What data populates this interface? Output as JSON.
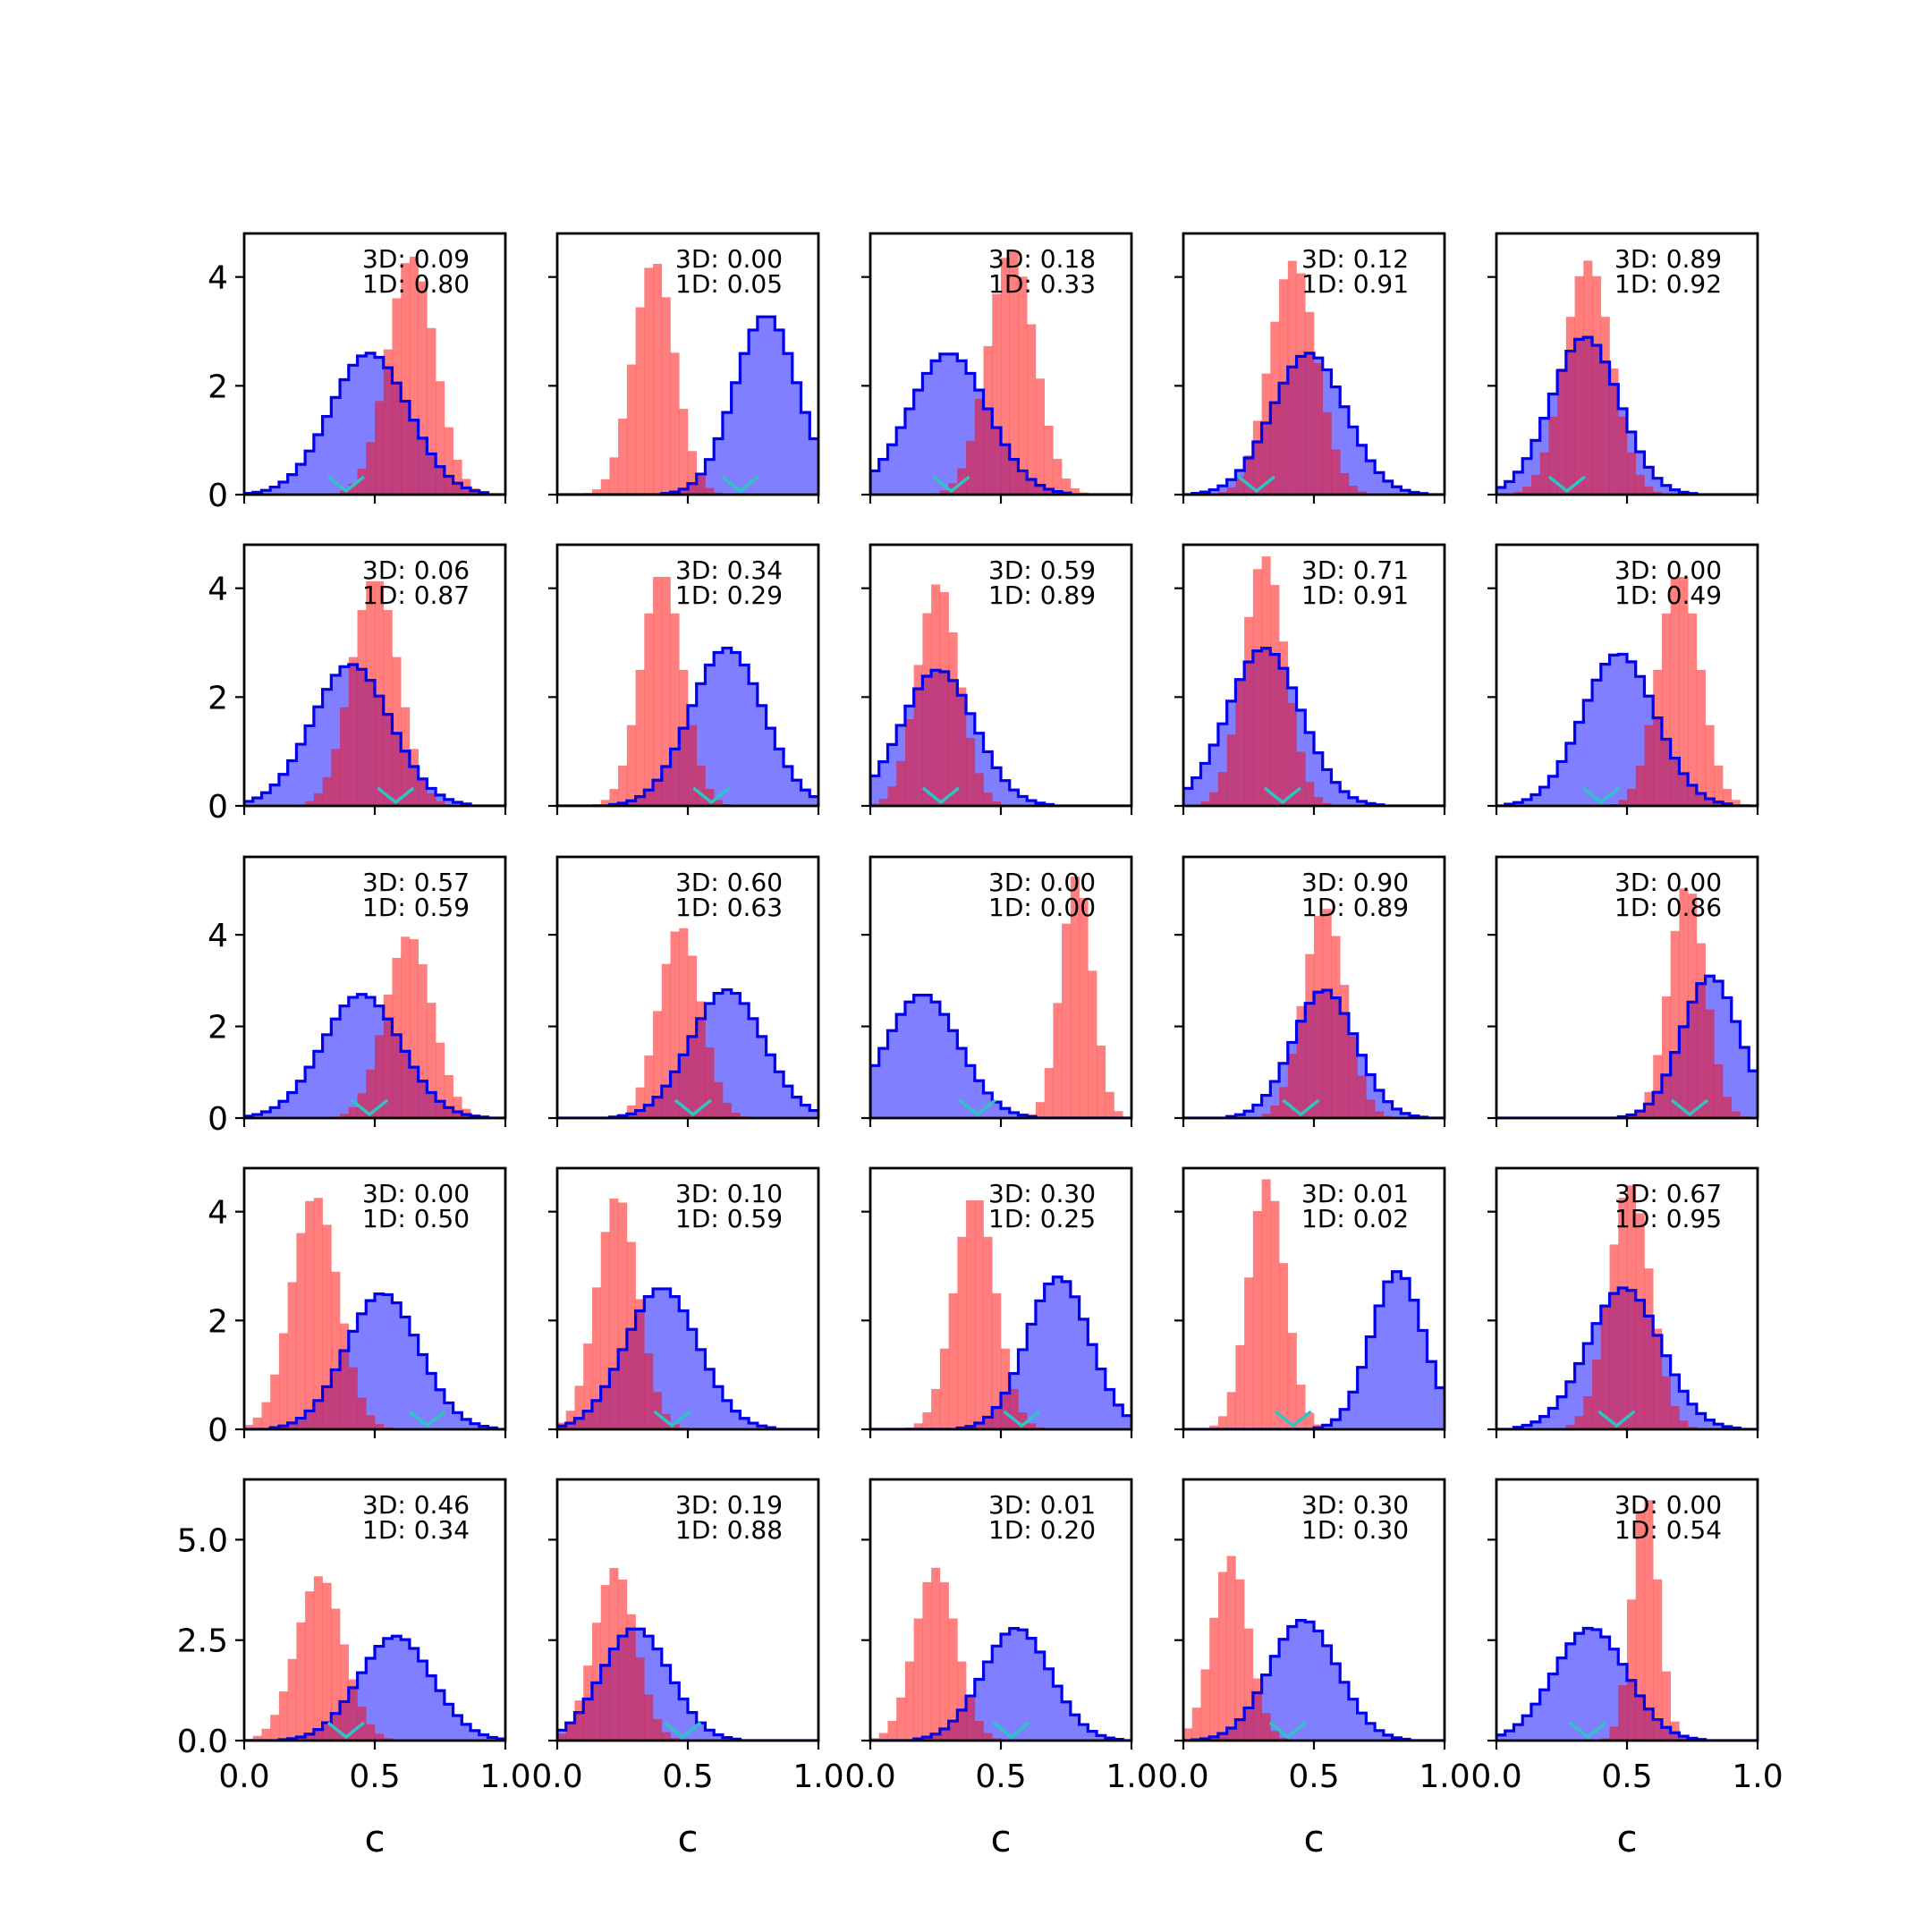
{
  "chart_data": {
    "type": "histogram-grid",
    "rows": 5,
    "cols": 5,
    "xlim": [
      0.0,
      1.0
    ],
    "xticks": [
      "0.0",
      "0.5",
      "1.0"
    ],
    "xlabel": "c",
    "row_yticks": [
      {
        "ylim": [
          0,
          4.8
        ],
        "ticks": [
          0,
          2,
          4
        ],
        "labels": [
          "0",
          "2",
          "4"
        ]
      },
      {
        "ylim": [
          0,
          4.8
        ],
        "ticks": [
          0,
          2,
          4
        ],
        "labels": [
          "0",
          "2",
          "4"
        ]
      },
      {
        "ylim": [
          0,
          5.7
        ],
        "ticks": [
          0,
          2,
          4
        ],
        "labels": [
          "0",
          "2",
          "4"
        ]
      },
      {
        "ylim": [
          0,
          4.8
        ],
        "ticks": [
          0,
          2,
          4
        ],
        "labels": [
          "0",
          "2",
          "4"
        ]
      },
      {
        "ylim": [
          0,
          6.5
        ],
        "ticks": [
          0,
          2.5,
          5.0
        ],
        "labels": [
          "0.0",
          "2.5",
          "5.0"
        ]
      }
    ],
    "colors": {
      "red": "#ff0000",
      "blue": "#0000ff",
      "blue_edge": "#0000ee",
      "marker": "#2ec4c4"
    },
    "panels": [
      {
        "text_3d": "3D: 0.09",
        "text_1d": "1D: 0.80",
        "red": {
          "mean": 0.64,
          "sd": 0.09,
          "peak": 4.4
        },
        "blue": {
          "mean": 0.48,
          "sd": 0.15,
          "peak": 2.6
        },
        "marker": 0.39
      },
      {
        "text_3d": "3D: 0.00",
        "text_1d": "1D: 0.05",
        "red": {
          "mean": 0.37,
          "sd": 0.08,
          "peak": 4.3
        },
        "blue": {
          "mean": 0.8,
          "sd": 0.12,
          "peak": 3.3
        },
        "marker": 0.7
      },
      {
        "text_3d": "3D: 0.18",
        "text_1d": "1D: 0.33",
        "red": {
          "mean": 0.54,
          "sd": 0.09,
          "peak": 4.5
        },
        "blue": {
          "mean": 0.3,
          "sd": 0.15,
          "peak": 2.6
        },
        "marker": 0.31
      },
      {
        "text_3d": "3D: 0.12",
        "text_1d": "1D: 0.91",
        "red": {
          "mean": 0.42,
          "sd": 0.09,
          "peak": 4.3
        },
        "blue": {
          "mean": 0.48,
          "sd": 0.14,
          "peak": 2.6
        },
        "marker": 0.28
      },
      {
        "text_3d": "3D: 0.89",
        "text_1d": "1D: 0.92",
        "red": {
          "mean": 0.35,
          "sd": 0.09,
          "peak": 4.3
        },
        "blue": {
          "mean": 0.34,
          "sd": 0.13,
          "peak": 2.9
        },
        "marker": 0.27
      },
      {
        "text_3d": "3D: 0.06",
        "text_1d": "1D: 0.87",
        "red": {
          "mean": 0.5,
          "sd": 0.09,
          "peak": 4.2
        },
        "blue": {
          "mean": 0.41,
          "sd": 0.15,
          "peak": 2.6
        },
        "marker": 0.58
      },
      {
        "text_3d": "3D: 0.34",
        "text_1d": "1D: 0.29",
        "red": {
          "mean": 0.4,
          "sd": 0.08,
          "peak": 4.3
        },
        "blue": {
          "mean": 0.65,
          "sd": 0.14,
          "peak": 2.9
        },
        "marker": 0.59
      },
      {
        "text_3d": "3D: 0.59",
        "text_1d": "1D: 0.89",
        "red": {
          "mean": 0.26,
          "sd": 0.08,
          "peak": 4.1
        },
        "blue": {
          "mean": 0.26,
          "sd": 0.14,
          "peak": 2.5
        },
        "marker": 0.27
      },
      {
        "text_3d": "3D: 0.71",
        "text_1d": "1D: 0.91",
        "red": {
          "mean": 0.31,
          "sd": 0.08,
          "peak": 4.6
        },
        "blue": {
          "mean": 0.31,
          "sd": 0.14,
          "peak": 2.9
        },
        "marker": 0.38
      },
      {
        "text_3d": "3D: 0.00",
        "text_1d": "1D: 0.49",
        "red": {
          "mean": 0.7,
          "sd": 0.08,
          "peak": 4.3
        },
        "blue": {
          "mean": 0.47,
          "sd": 0.14,
          "peak": 2.8
        },
        "marker": 0.4
      },
      {
        "text_3d": "3D: 0.57",
        "text_1d": "1D: 0.59",
        "red": {
          "mean": 0.63,
          "sd": 0.09,
          "peak": 4.0
        },
        "blue": {
          "mean": 0.45,
          "sd": 0.15,
          "peak": 2.7
        },
        "marker": 0.48
      },
      {
        "text_3d": "3D: 0.60",
        "text_1d": "1D: 0.63",
        "red": {
          "mean": 0.47,
          "sd": 0.08,
          "peak": 4.2
        },
        "blue": {
          "mean": 0.65,
          "sd": 0.14,
          "peak": 2.8
        },
        "marker": 0.52
      },
      {
        "text_3d": "3D: 0.00",
        "text_1d": "1D: 0.00",
        "red": {
          "mean": 0.79,
          "sd": 0.06,
          "peak": 5.3
        },
        "blue": {
          "mean": 0.2,
          "sd": 0.14,
          "peak": 2.7
        },
        "marker": 0.41
      },
      {
        "text_3d": "3D: 0.90",
        "text_1d": "1D: 0.89",
        "red": {
          "mean": 0.54,
          "sd": 0.08,
          "peak": 4.6
        },
        "blue": {
          "mean": 0.54,
          "sd": 0.12,
          "peak": 2.8
        },
        "marker": 0.45
      },
      {
        "text_3d": "3D: 0.00",
        "text_1d": "1D: 0.86",
        "red": {
          "mean": 0.73,
          "sd": 0.07,
          "peak": 5.1
        },
        "blue": {
          "mean": 0.82,
          "sd": 0.11,
          "peak": 3.1
        },
        "marker": 0.74
      },
      {
        "text_3d": "3D: 0.00",
        "text_1d": "1D: 0.50",
        "red": {
          "mean": 0.27,
          "sd": 0.09,
          "peak": 4.3
        },
        "blue": {
          "mean": 0.53,
          "sd": 0.14,
          "peak": 2.5
        },
        "marker": 0.7
      },
      {
        "text_3d": "3D: 0.10",
        "text_1d": "1D: 0.59",
        "red": {
          "mean": 0.23,
          "sd": 0.08,
          "peak": 4.3
        },
        "blue": {
          "mean": 0.4,
          "sd": 0.14,
          "peak": 2.6
        },
        "marker": 0.44
      },
      {
        "text_3d": "3D: 0.30",
        "text_1d": "1D: 0.25",
        "red": {
          "mean": 0.4,
          "sd": 0.08,
          "peak": 4.3
        },
        "blue": {
          "mean": 0.72,
          "sd": 0.12,
          "peak": 2.8
        },
        "marker": 0.58
      },
      {
        "text_3d": "3D: 0.01",
        "text_1d": "1D: 0.02",
        "red": {
          "mean": 0.32,
          "sd": 0.07,
          "peak": 4.6
        },
        "blue": {
          "mean": 0.82,
          "sd": 0.1,
          "peak": 2.9
        },
        "marker": 0.42
      },
      {
        "text_3d": "3D: 0.67",
        "text_1d": "1D: 0.95",
        "red": {
          "mean": 0.51,
          "sd": 0.08,
          "peak": 4.5
        },
        "blue": {
          "mean": 0.49,
          "sd": 0.14,
          "peak": 2.6
        },
        "marker": 0.46
      },
      {
        "text_3d": "3D: 0.46",
        "text_1d": "1D: 0.34",
        "red": {
          "mean": 0.29,
          "sd": 0.09,
          "peak": 4.1
        },
        "blue": {
          "mean": 0.58,
          "sd": 0.14,
          "peak": 2.6
        },
        "marker": 0.39
      },
      {
        "text_3d": "3D: 0.19",
        "text_1d": "1D: 0.88",
        "red": {
          "mean": 0.22,
          "sd": 0.08,
          "peak": 4.3
        },
        "blue": {
          "mean": 0.3,
          "sd": 0.13,
          "peak": 2.8
        },
        "marker": 0.48
      },
      {
        "text_3d": "3D: 0.01",
        "text_1d": "1D: 0.20",
        "red": {
          "mean": 0.25,
          "sd": 0.08,
          "peak": 4.3
        },
        "blue": {
          "mean": 0.56,
          "sd": 0.13,
          "peak": 2.8
        },
        "marker": 0.54
      },
      {
        "text_3d": "3D: 0.30",
        "text_1d": "1D: 0.30",
        "red": {
          "mean": 0.18,
          "sd": 0.07,
          "peak": 4.6
        },
        "blue": {
          "mean": 0.46,
          "sd": 0.13,
          "peak": 3.0
        },
        "marker": 0.4
      },
      {
        "text_3d": "3D: 0.00",
        "text_1d": "1D: 0.54",
        "red": {
          "mean": 0.57,
          "sd": 0.05,
          "peak": 6.2
        },
        "blue": {
          "mean": 0.36,
          "sd": 0.14,
          "peak": 2.8
        },
        "marker": 0.35
      }
    ]
  }
}
